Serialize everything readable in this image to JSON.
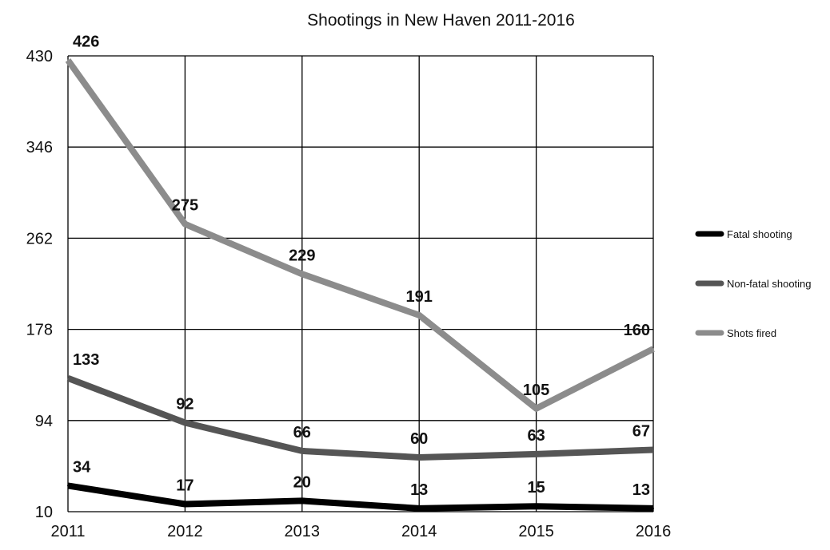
{
  "chart_data": {
    "type": "line",
    "title": "Shootings in New Haven 2011-2016",
    "xlabel": "",
    "ylabel": "",
    "x": [
      "2011",
      "2012",
      "2013",
      "2014",
      "2015",
      "2016"
    ],
    "ylim": [
      10,
      430
    ],
    "yticks": [
      "10",
      "94",
      "178",
      "262",
      "346",
      "430"
    ],
    "grid": true,
    "legend_position": "right",
    "series": [
      {
        "name": "Fatal shooting",
        "values": [
          34,
          17,
          20,
          13,
          15,
          13
        ],
        "color": "#000000",
        "labels": [
          "34",
          "17",
          "20",
          "13",
          "15",
          "13"
        ]
      },
      {
        "name": "Non-fatal shooting",
        "values": [
          133,
          92,
          66,
          60,
          63,
          67
        ],
        "color": "#555555",
        "labels": [
          "133",
          "92",
          "66",
          "60",
          "63",
          "67"
        ]
      },
      {
        "name": "Shots fired",
        "values": [
          426,
          275,
          229,
          191,
          105,
          160
        ],
        "color": "#8c8c8c",
        "labels": [
          "426",
          "275",
          "229",
          "191",
          "105",
          "160"
        ]
      }
    ]
  }
}
